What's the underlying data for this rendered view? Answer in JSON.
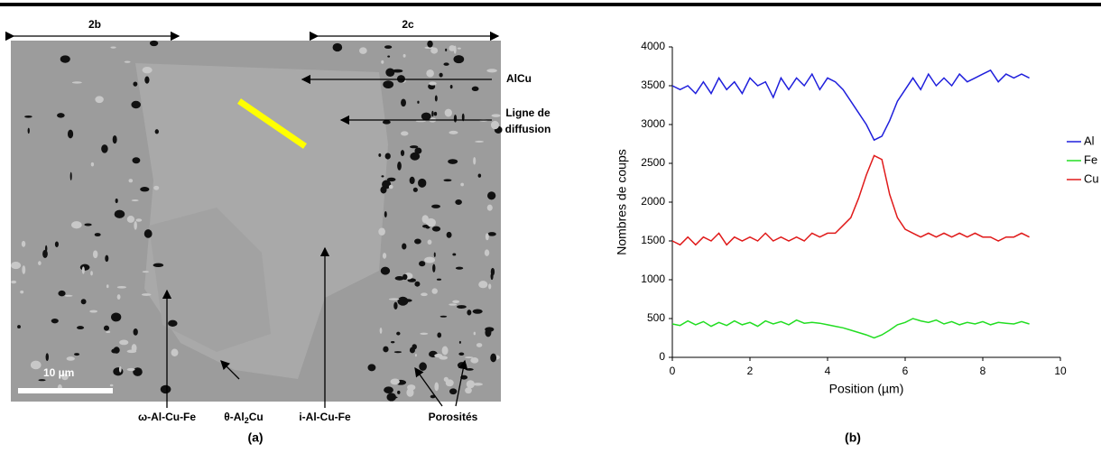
{
  "panel_a": {
    "labels": {
      "region_b": "2b",
      "region_c": "2c",
      "alcu": "AlCu",
      "ligne_1": "Ligne de",
      "ligne_2": "diffusion",
      "scale": "10 µm",
      "omega": "ω-Al-Cu-Fe",
      "theta_parts": [
        "θ-Al",
        "2",
        "Cu"
      ],
      "icosa": "i-Al-Cu-Fe",
      "pores": "Porosités"
    },
    "caption": "(a)"
  },
  "panel_b_caption": "(b)",
  "chart_data": {
    "type": "line",
    "xlabel": "Position (µm)",
    "ylabel": "Nombres de coups",
    "xlim": [
      0,
      10
    ],
    "ylim": [
      0,
      4000
    ],
    "xticks": [
      0,
      2,
      4,
      6,
      8,
      10
    ],
    "yticks": [
      0,
      500,
      1000,
      1500,
      2000,
      2500,
      3000,
      3500,
      4000
    ],
    "x": [
      0,
      0.2,
      0.4,
      0.6,
      0.8,
      1.0,
      1.2,
      1.4,
      1.6,
      1.8,
      2.0,
      2.2,
      2.4,
      2.6,
      2.8,
      3.0,
      3.2,
      3.4,
      3.6,
      3.8,
      4.0,
      4.2,
      4.4,
      4.6,
      4.8,
      5.0,
      5.2,
      5.4,
      5.6,
      5.8,
      6.0,
      6.2,
      6.4,
      6.6,
      6.8,
      7.0,
      7.2,
      7.4,
      7.6,
      7.8,
      8.0,
      8.2,
      8.4,
      8.6,
      8.8,
      9.0,
      9.2
    ],
    "series": [
      {
        "name": "Al",
        "color": "#1f1fdc",
        "values": [
          3500,
          3450,
          3500,
          3400,
          3550,
          3400,
          3600,
          3450,
          3550,
          3400,
          3600,
          3500,
          3550,
          3350,
          3600,
          3450,
          3600,
          3500,
          3650,
          3450,
          3600,
          3550,
          3450,
          3300,
          3150,
          3000,
          2800,
          2850,
          3050,
          3300,
          3450,
          3600,
          3450,
          3650,
          3500,
          3600,
          3500,
          3650,
          3550,
          3600,
          3650,
          3700,
          3550,
          3650,
          3600,
          3650,
          3600
        ]
      },
      {
        "name": "Fe",
        "color": "#22dd22",
        "values": [
          430,
          410,
          470,
          420,
          460,
          400,
          450,
          410,
          470,
          420,
          450,
          400,
          470,
          430,
          460,
          420,
          480,
          440,
          450,
          440,
          420,
          400,
          380,
          350,
          320,
          290,
          250,
          290,
          350,
          420,
          450,
          500,
          470,
          450,
          480,
          430,
          460,
          420,
          450,
          430,
          460,
          420,
          450,
          440,
          430,
          460,
          430
        ]
      },
      {
        "name": "Cu",
        "color": "#e01a1a",
        "values": [
          1500,
          1450,
          1550,
          1450,
          1550,
          1500,
          1600,
          1450,
          1550,
          1500,
          1550,
          1500,
          1600,
          1500,
          1550,
          1500,
          1550,
          1500,
          1600,
          1550,
          1600,
          1600,
          1700,
          1800,
          2050,
          2350,
          2600,
          2550,
          2100,
          1800,
          1650,
          1600,
          1550,
          1600,
          1550,
          1600,
          1550,
          1600,
          1550,
          1600,
          1550,
          1550,
          1500,
          1550,
          1550,
          1600,
          1550
        ]
      }
    ]
  }
}
